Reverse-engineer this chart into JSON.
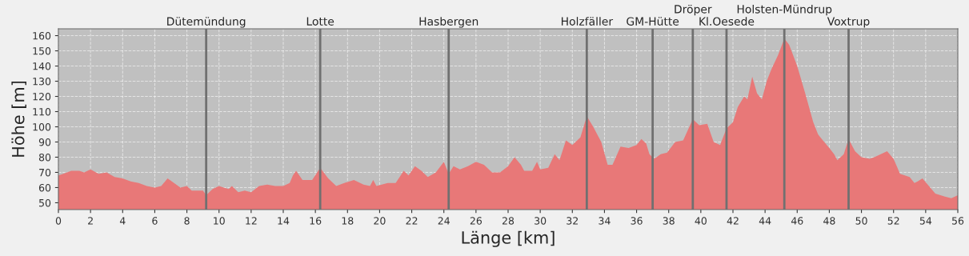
{
  "chart_data": {
    "type": "area",
    "xlabel": "Länge [km]",
    "ylabel": "Höhe [m]",
    "x": [
      0,
      0.3,
      0.8,
      1.3,
      1.6,
      2.0,
      2.5,
      3.0,
      3.5,
      4,
      4.5,
      5,
      5.5,
      6,
      6.4,
      6.8,
      7.2,
      7.6,
      8,
      8.3,
      9,
      9.2,
      9.6,
      10,
      10.3,
      10.6,
      10.8,
      11.2,
      11.6,
      12,
      12.5,
      13,
      13.5,
      14,
      14.4,
      14.6,
      14.8,
      15.2,
      15.8,
      16.3,
      16.8,
      17.3,
      17.8,
      18.4,
      19,
      19.4,
      19.6,
      19.8,
      20.5,
      21,
      21.5,
      21.8,
      22.2,
      22.6,
      23,
      23.5,
      24,
      24.3,
      24.6,
      25,
      25.5,
      26,
      26.5,
      27,
      27.5,
      28,
      28.4,
      28.8,
      29,
      29.5,
      29.8,
      30,
      30.5,
      30.9,
      31.2,
      31.6,
      32,
      32.5,
      32.9,
      33.3,
      33.8,
      34.2,
      34.5,
      35,
      35.5,
      36,
      36.3,
      36.6,
      36.8,
      37.1,
      37.5,
      37.9,
      38.4,
      38.9,
      39.5,
      39.9,
      40.4,
      40.8,
      41.2,
      41.6,
      42,
      42.3,
      42.7,
      42.9,
      43.2,
      43.5,
      43.8,
      44.1,
      44.4,
      44.8,
      45.2,
      45.5,
      46,
      46.5,
      47,
      47.3,
      47.6,
      48,
      48.3,
      48.5,
      48.9,
      49.2,
      49.6,
      50,
      50.5,
      50.8,
      51.2,
      51.6,
      52,
      52.2,
      52.4,
      53,
      53.3,
      53.5,
      53.8,
      54.2,
      54.6,
      55.2,
      55.6,
      56
    ],
    "series": [
      {
        "color": "#e87878",
        "values": [
          68,
          69,
          71,
          71,
          70,
          72,
          69,
          70,
          67,
          66,
          64,
          63,
          61,
          60,
          61,
          66,
          63,
          60,
          61,
          58,
          58,
          55,
          59,
          61,
          60,
          59,
          61,
          57,
          58,
          57,
          61,
          62,
          61,
          61,
          63,
          68,
          71,
          65,
          65,
          73,
          66,
          61,
          63,
          65,
          62,
          61,
          65,
          61,
          63,
          63,
          71,
          68,
          74,
          71,
          67,
          70,
          77,
          69,
          74,
          72,
          74,
          77,
          75,
          70,
          70,
          74,
          80,
          75,
          71,
          71,
          77,
          72,
          73,
          82,
          78,
          91,
          88,
          93,
          107,
          100,
          90,
          75,
          75,
          87,
          86,
          88,
          92,
          89,
          82,
          79,
          82,
          83,
          90,
          91,
          105,
          101,
          102,
          90,
          88,
          99,
          103,
          113,
          120,
          118,
          133,
          122,
          118,
          130,
          138,
          147,
          158,
          154,
          140,
          122,
          103,
          95,
          91,
          86,
          82,
          78,
          82,
          92,
          84,
          80,
          79,
          80,
          82,
          84,
          79,
          74,
          69,
          67,
          63,
          64,
          66,
          61,
          56,
          54,
          53,
          55
        ]
      }
    ],
    "xlim": [
      0,
      56
    ],
    "ylim": [
      45.5,
      164.5
    ],
    "xticks": [
      0,
      2,
      4,
      6,
      8,
      10,
      12,
      14,
      16,
      18,
      20,
      22,
      24,
      26,
      28,
      30,
      32,
      34,
      36,
      38,
      40,
      42,
      44,
      46,
      48,
      50,
      52,
      54,
      56
    ],
    "yticks": [
      50,
      60,
      70,
      80,
      90,
      100,
      110,
      120,
      130,
      140,
      150,
      160
    ],
    "grid": true,
    "ref_lines": [
      {
        "axis": "x",
        "value": 9.2,
        "label": "Dütemündung",
        "color": "#707070"
      },
      {
        "axis": "x",
        "value": 16.3,
        "label": "Lotte",
        "color": "#707070"
      },
      {
        "axis": "x",
        "value": 24.3,
        "label": "Hasbergen",
        "color": "#707070"
      },
      {
        "axis": "x",
        "value": 32.9,
        "label": "Holzfäller",
        "color": "#707070"
      },
      {
        "axis": "x",
        "value": 37.0,
        "label": "GM-Hütte",
        "color": "#707070"
      },
      {
        "axis": "x",
        "value": 39.5,
        "label": "Dröper",
        "color": "#707070"
      },
      {
        "axis": "x",
        "value": 41.6,
        "label": "Kl.Oesede",
        "color": "#707070"
      },
      {
        "axis": "x",
        "value": 45.2,
        "label": "Holsten-Mündrup",
        "color": "#707070"
      },
      {
        "axis": "x",
        "value": 49.2,
        "label": "Voxtrup",
        "color": "#707070"
      }
    ]
  }
}
